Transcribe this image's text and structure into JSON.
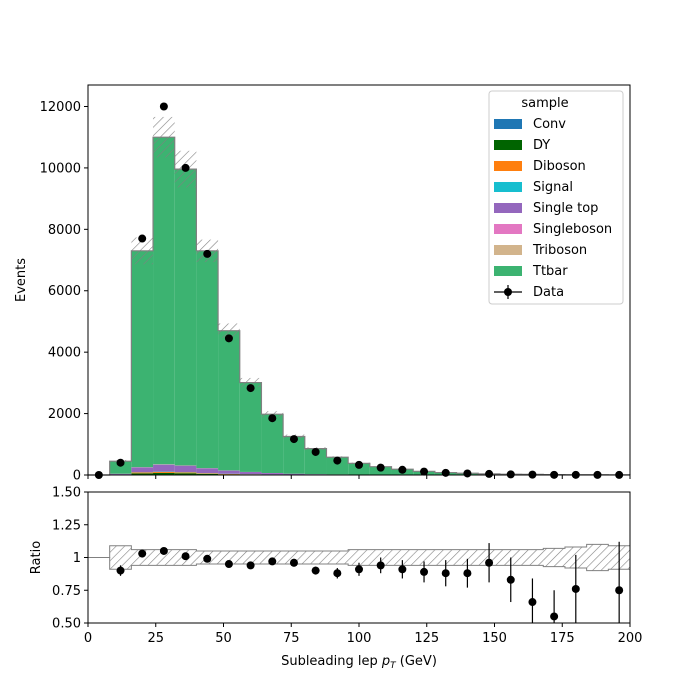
{
  "chart_data": [
    {
      "type": "bar",
      "subtype": "stacked-histogram-with-data",
      "ylabel": "Events",
      "xlim": [
        0,
        200
      ],
      "ylim": [
        0,
        12700
      ],
      "yticks": [
        0,
        2000,
        4000,
        6000,
        8000,
        10000,
        12000
      ],
      "legend": {
        "title": "sample",
        "placement": "top-right"
      },
      "bin_edges": [
        0,
        8,
        16,
        24,
        32,
        40,
        48,
        56,
        64,
        72,
        80,
        88,
        96,
        104,
        112,
        120,
        128,
        136,
        144,
        152,
        160,
        168,
        176,
        184,
        192,
        200
      ],
      "series": [
        {
          "name": "Conv",
          "color": "#1f77b4",
          "values": [
            0,
            1,
            5,
            8,
            8,
            6,
            4,
            3,
            2,
            1,
            1,
            1,
            0,
            0,
            0,
            0,
            0,
            0,
            0,
            0,
            0,
            0,
            0,
            0,
            0
          ]
        },
        {
          "name": "DY",
          "color": "#006400",
          "values": [
            0,
            10,
            50,
            60,
            50,
            30,
            20,
            12,
            8,
            5,
            3,
            2,
            1,
            1,
            1,
            0,
            0,
            0,
            0,
            0,
            0,
            0,
            0,
            0,
            0
          ]
        },
        {
          "name": "Diboson",
          "color": "#ff7f0e",
          "values": [
            0,
            5,
            30,
            35,
            30,
            20,
            12,
            8,
            5,
            3,
            2,
            1,
            1,
            1,
            0,
            0,
            0,
            0,
            0,
            0,
            0,
            0,
            0,
            0,
            0
          ]
        },
        {
          "name": "Signal",
          "color": "#17becf",
          "values": [
            0,
            2,
            8,
            10,
            10,
            8,
            6,
            4,
            3,
            2,
            1,
            1,
            1,
            0,
            0,
            0,
            0,
            0,
            0,
            0,
            0,
            0,
            0,
            0,
            0
          ]
        },
        {
          "name": "Single top",
          "color": "#9467bd",
          "values": [
            0,
            20,
            150,
            220,
            200,
            150,
            100,
            70,
            45,
            30,
            20,
            14,
            10,
            7,
            5,
            4,
            3,
            2,
            2,
            1,
            1,
            1,
            1,
            0,
            0
          ]
        },
        {
          "name": "Singleboson",
          "color": "#e377c2",
          "values": [
            0,
            3,
            10,
            12,
            10,
            8,
            5,
            3,
            2,
            1,
            1,
            1,
            0,
            0,
            0,
            0,
            0,
            0,
            0,
            0,
            0,
            0,
            0,
            0,
            0
          ]
        },
        {
          "name": "Triboson",
          "color": "#d2b48c",
          "values": [
            0,
            0,
            1,
            1,
            1,
            1,
            1,
            0,
            0,
            0,
            0,
            0,
            0,
            0,
            0,
            0,
            0,
            0,
            0,
            0,
            0,
            0,
            0,
            0,
            0
          ]
        },
        {
          "name": "Ttbar",
          "color": "#3cb371",
          "values": [
            0,
            409,
            7046,
            10654,
            9651,
            7077,
            4553,
            2911,
            1915,
            1212,
            832,
            560,
            367,
            261,
            184,
            116,
            77,
            54,
            35,
            26,
            19,
            14,
            9,
            7,
            5
          ]
        }
      ],
      "mc_total": [
        0,
        450,
        7300,
        11000,
        9960,
        7300,
        4700,
        3010,
        1980,
        1254,
        860,
        580,
        380,
        270,
        190,
        120,
        80,
        56,
        37,
        27,
        20,
        15,
        10,
        7,
        5
      ],
      "mc_uncertainty_label": "hatched band",
      "data": {
        "name": "Data",
        "x": [
          4,
          12,
          20,
          28,
          36,
          44,
          52,
          60,
          68,
          76,
          84,
          92,
          100,
          108,
          116,
          124,
          132,
          140,
          148,
          156,
          164,
          172,
          180,
          188,
          196
        ],
        "y": [
          0,
          400,
          7700,
          12000,
          10000,
          7200,
          4450,
          2830,
          1850,
          1170,
          750,
          470,
          330,
          240,
          170,
          110,
          70,
          50,
          35,
          20,
          12,
          6,
          6,
          4,
          3
        ]
      }
    },
    {
      "type": "scatter",
      "subtype": "ratio-panel",
      "xlabel": "Subleading lep $p_T$ (GeV)",
      "ylabel": "Ratio",
      "xlim": [
        0,
        200
      ],
      "ylim": [
        0.5,
        1.5
      ],
      "yticks": [
        0.5,
        0.75,
        1.0,
        1.25,
        1.5
      ],
      "xticks": [
        0,
        25,
        50,
        75,
        100,
        125,
        150,
        175,
        200
      ],
      "grid": false,
      "points": {
        "x": [
          12,
          20,
          28,
          36,
          44,
          52,
          60,
          68,
          76,
          84,
          92,
          100,
          108,
          116,
          124,
          132,
          140,
          148,
          156,
          164,
          172,
          180,
          196
        ],
        "y": [
          0.9,
          1.03,
          1.05,
          1.01,
          0.99,
          0.95,
          0.94,
          0.97,
          0.96,
          0.9,
          0.88,
          0.91,
          0.94,
          0.91,
          0.89,
          0.88,
          0.88,
          0.96,
          0.83,
          0.66,
          0.55,
          0.76,
          0.75
        ],
        "err": [
          0.04,
          0.01,
          0.01,
          0.01,
          0.01,
          0.01,
          0.02,
          0.02,
          0.03,
          0.03,
          0.04,
          0.05,
          0.06,
          0.07,
          0.08,
          0.1,
          0.11,
          0.15,
          0.17,
          0.18,
          0.2,
          0.26,
          0.37
        ]
      },
      "band_halfwidth": [
        0,
        0.09,
        0.06,
        0.06,
        0.06,
        0.05,
        0.05,
        0.05,
        0.05,
        0.05,
        0.05,
        0.05,
        0.06,
        0.06,
        0.06,
        0.06,
        0.06,
        0.06,
        0.06,
        0.06,
        0.06,
        0.07,
        0.08,
        0.1,
        0.09
      ]
    }
  ]
}
